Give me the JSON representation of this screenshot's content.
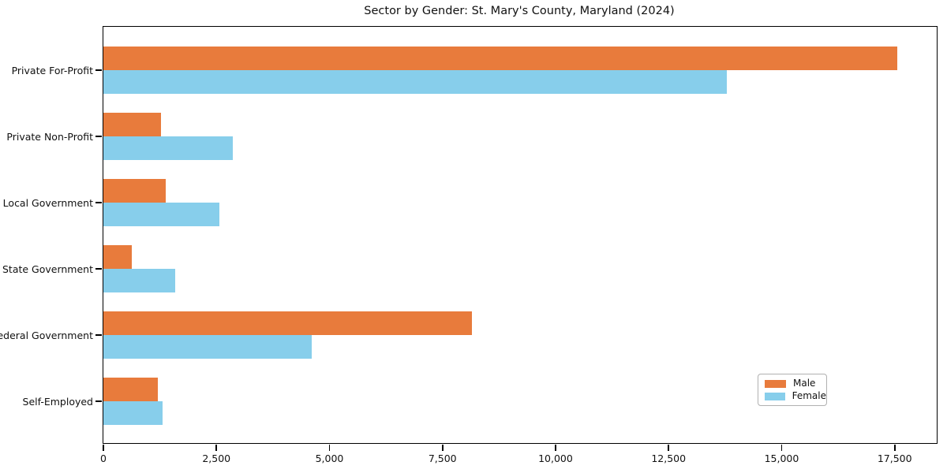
{
  "chart_data": {
    "type": "bar",
    "orientation": "horizontal",
    "title": "Sector by Gender: St. Mary's County, Maryland (2024)",
    "categories": [
      "Private For-Profit",
      "Private Non-Profit",
      "Local Government",
      "State Government",
      "Federal Government",
      "Self-Employed"
    ],
    "series": [
      {
        "name": "Male",
        "color": "#e87b3c",
        "values": [
          17550,
          1270,
          1380,
          630,
          8150,
          1210
        ]
      },
      {
        "name": "Female",
        "color": "#87ceeb",
        "values": [
          13790,
          2860,
          2570,
          1590,
          4600,
          1310
        ]
      }
    ],
    "xlabel": "",
    "ylabel": "",
    "xlim": [
      0,
      18430
    ],
    "xticks": [
      0,
      2500,
      5000,
      7500,
      10000,
      12500,
      15000,
      17500
    ],
    "xtick_labels": [
      "0",
      "2,500",
      "5,000",
      "7,500",
      "10,000",
      "12,500",
      "15,000",
      "17,500"
    ],
    "grid": false,
    "legend_position": "lower right",
    "background": "#ffffff",
    "axis_color": "#000000"
  },
  "legend": {
    "male_label": "Male",
    "female_label": "Female"
  }
}
